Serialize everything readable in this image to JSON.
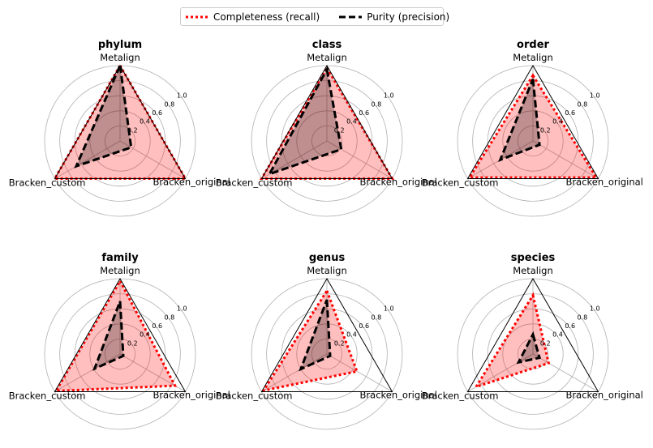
{
  "legend": {
    "placement": "top-center",
    "items": [
      {
        "label": "Completeness (recall)",
        "color": "#ff0000",
        "style": "dotted"
      },
      {
        "label": "Purity (precision)",
        "color": "#000000",
        "style": "dashed"
      }
    ]
  },
  "chart_data": [
    {
      "type": "radar",
      "title": "phylum",
      "axes": [
        "Metalign",
        "Bracken_original",
        "Bracken_custom"
      ],
      "rticks": [
        "0.2",
        "0.4",
        "0.6",
        "0.8",
        "1.0"
      ],
      "rlim": [
        0,
        1
      ],
      "series": [
        {
          "name": "Completeness (recall)",
          "values": [
            1.0,
            1.0,
            1.0
          ]
        },
        {
          "name": "Purity (precision)",
          "values": [
            1.0,
            0.17,
            0.67
          ]
        }
      ]
    },
    {
      "type": "radar",
      "title": "class",
      "axes": [
        "Metalign",
        "Bracken_original",
        "Bracken_custom"
      ],
      "rticks": [
        "0.2",
        "0.4",
        "0.6",
        "0.8",
        "1.0"
      ],
      "rlim": [
        0,
        1
      ],
      "series": [
        {
          "name": "Completeness (recall)",
          "values": [
            0.97,
            1.0,
            1.0
          ]
        },
        {
          "name": "Purity (precision)",
          "values": [
            0.95,
            0.22,
            0.88
          ]
        }
      ]
    },
    {
      "type": "radar",
      "title": "order",
      "axes": [
        "Metalign",
        "Bracken_original",
        "Bracken_custom"
      ],
      "rticks": [
        "0.2",
        "0.4",
        "0.6",
        "0.8",
        "1.0"
      ],
      "rlim": [
        0,
        1
      ],
      "series": [
        {
          "name": "Completeness (recall)",
          "values": [
            0.87,
            0.97,
            0.97
          ]
        },
        {
          "name": "Purity (precision)",
          "values": [
            0.82,
            0.1,
            0.5
          ]
        }
      ]
    },
    {
      "type": "radar",
      "title": "family",
      "axes": [
        "Metalign",
        "Bracken_original",
        "Bracken_custom"
      ],
      "rticks": [
        "0.2",
        "0.4",
        "0.6",
        "0.8",
        "1.0"
      ],
      "rlim": [
        0,
        1
      ],
      "series": [
        {
          "name": "Completeness (recall)",
          "values": [
            0.97,
            0.84,
            0.98
          ]
        },
        {
          "name": "Purity (precision)",
          "values": [
            0.7,
            0.05,
            0.39
          ]
        }
      ]
    },
    {
      "type": "radar",
      "title": "genus",
      "axes": [
        "Metalign",
        "Bracken_original",
        "Bracken_custom"
      ],
      "rticks": [
        "0.2",
        "0.4",
        "0.6",
        "0.8",
        "1.0"
      ],
      "rlim": [
        0,
        1
      ],
      "series": [
        {
          "name": "Completeness (recall)",
          "values": [
            0.84,
            0.46,
            0.97
          ]
        },
        {
          "name": "Purity (precision)",
          "values": [
            0.72,
            0.05,
            0.4
          ]
        }
      ]
    },
    {
      "type": "radar",
      "title": "species",
      "axes": [
        "Metalign",
        "Bracken_original",
        "Bracken_custom"
      ],
      "rticks": [
        "0.2",
        "0.4",
        "0.6",
        "0.8",
        "1.0"
      ],
      "rlim": [
        0,
        1
      ],
      "series": [
        {
          "name": "Completeness (recall)",
          "values": [
            0.78,
            0.24,
            0.87
          ]
        },
        {
          "name": "Purity (precision)",
          "values": [
            0.26,
            0.1,
            0.22
          ]
        }
      ]
    }
  ]
}
